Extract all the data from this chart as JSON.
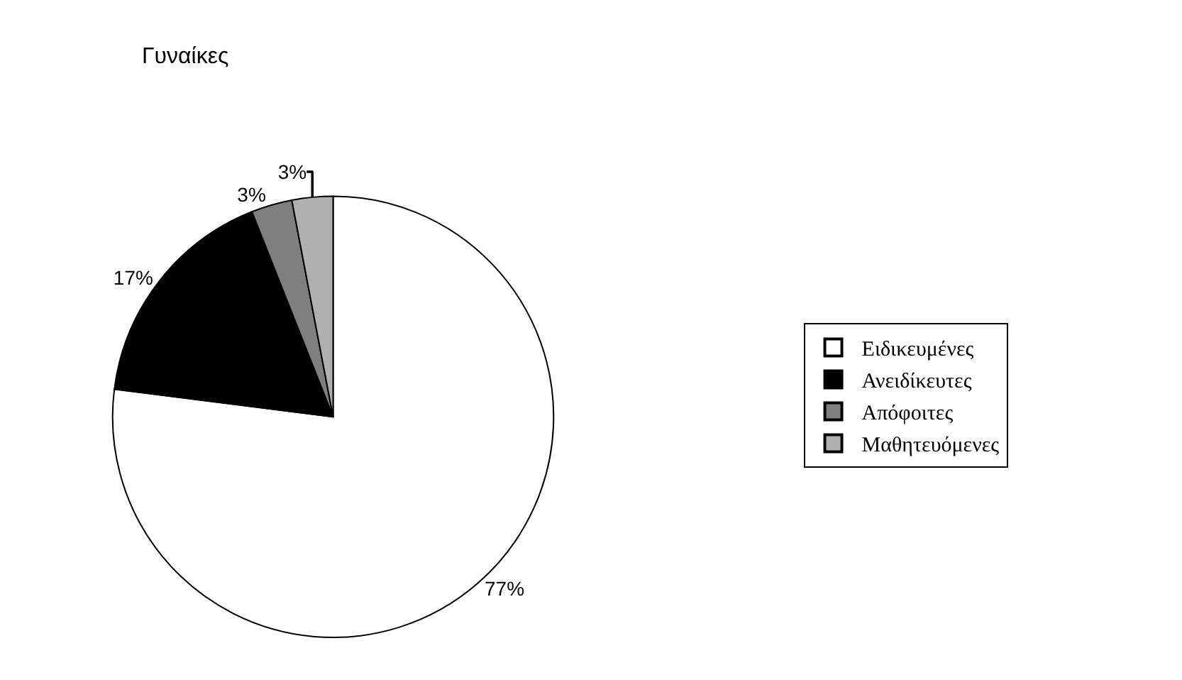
{
  "chart_data": {
    "type": "pie",
    "title": "Γυναίκες",
    "categories": [
      "Ειδικευμένες",
      "Ανειδίκευτες",
      "Απόφοιτες",
      "Μαθητευόμενες"
    ],
    "values": [
      77,
      17,
      3,
      3
    ],
    "value_labels": [
      "77%",
      "17%",
      "3%",
      "3%"
    ],
    "colors": [
      "#ffffff",
      "#000000",
      "#7f7f7f",
      "#b0b0b0"
    ],
    "legend": "right"
  }
}
